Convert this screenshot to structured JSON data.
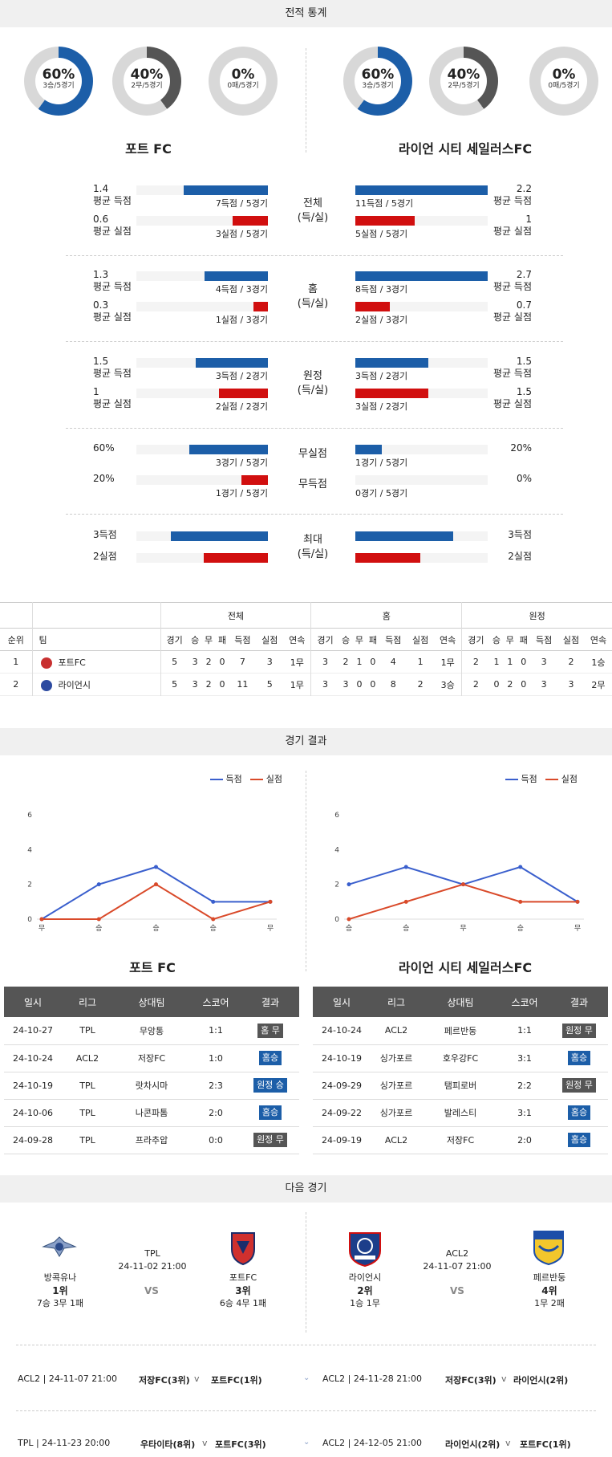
{
  "record": {
    "title": "전적 통계",
    "left": {
      "team": "포트 FC",
      "donuts": [
        {
          "pct": "60%",
          "sub": "3승/5경기",
          "value": 0.6,
          "color": "#1c5ea8"
        },
        {
          "pct": "40%",
          "sub": "2무/5경기",
          "value": 0.4,
          "color": "#555555"
        },
        {
          "pct": "0%",
          "sub": "0패/5경기",
          "value": 0.0,
          "color": "#d10f0f"
        }
      ]
    },
    "right": {
      "team": "라이언 시티 세일러스FC",
      "donuts": [
        {
          "pct": "60%",
          "sub": "3승/5경기",
          "value": 0.6,
          "color": "#1c5ea8"
        },
        {
          "pct": "40%",
          "sub": "2무/5경기",
          "value": 0.4,
          "color": "#555555"
        },
        {
          "pct": "0%",
          "sub": "0패/5경기",
          "value": 0.0,
          "color": "#d10f0f"
        }
      ]
    }
  },
  "stat_groups": [
    {
      "label": "전체\n(득/실)",
      "rows": [
        {
          "l_val": "1.4",
          "l_name": "평균 득점",
          "l_cap": "7득점 / 5경기",
          "l_frac": 0.64,
          "r_val": "2.2",
          "r_name": "평균 득점",
          "r_cap": "11득점 / 5경기",
          "r_frac": 1.0,
          "color": "blue"
        },
        {
          "l_val": "0.6",
          "l_name": "평균 실점",
          "l_cap": "3실점 / 5경기",
          "l_frac": 0.27,
          "r_val": "1",
          "r_name": "평균 실점",
          "r_cap": "5실점 / 5경기",
          "r_frac": 0.45,
          "color": "red"
        }
      ]
    },
    {
      "label": "홈\n(득/실)",
      "rows": [
        {
          "l_val": "1.3",
          "l_name": "평균 득점",
          "l_cap": "4득점 / 3경기",
          "l_frac": 0.48,
          "r_val": "2.7",
          "r_name": "평균 득점",
          "r_cap": "8득점 / 3경기",
          "r_frac": 1.0,
          "color": "blue"
        },
        {
          "l_val": "0.3",
          "l_name": "평균 실점",
          "l_cap": "1실점 / 3경기",
          "l_frac": 0.11,
          "r_val": "0.7",
          "r_name": "평균 실점",
          "r_cap": "2실점 / 3경기",
          "r_frac": 0.26,
          "color": "red"
        }
      ]
    },
    {
      "label": "원정\n(득/실)",
      "rows": [
        {
          "l_val": "1.5",
          "l_name": "평균 득점",
          "l_cap": "3득점 / 2경기",
          "l_frac": 0.55,
          "r_val": "1.5",
          "r_name": "평균 득점",
          "r_cap": "3득점 / 2경기",
          "r_frac": 0.55,
          "color": "blue"
        },
        {
          "l_val": "1",
          "l_name": "평균 실점",
          "l_cap": "2실점 / 2경기",
          "l_frac": 0.37,
          "r_val": "1.5",
          "r_name": "평균 실점",
          "r_cap": "3실점 / 2경기",
          "r_frac": 0.55,
          "color": "red"
        }
      ]
    }
  ],
  "clean": [
    {
      "label": "무실점",
      "l_val": "60%",
      "l_cap": "3경기 / 5경기",
      "l_frac": 0.6,
      "r_val": "20%",
      "r_cap": "1경기 / 5경기",
      "r_frac": 0.2,
      "color": "blue"
    },
    {
      "label": "무득점",
      "l_val": "20%",
      "l_cap": "1경기 / 5경기",
      "l_frac": 0.2,
      "r_val": "0%",
      "r_cap": "0경기 / 5경기",
      "r_frac": 0.0,
      "color": "red"
    }
  ],
  "max": {
    "label": "최대\n(득/실)",
    "rows": [
      {
        "l_val": "3득점",
        "l_frac": 0.74,
        "r_val": "3득점",
        "r_frac": 0.74,
        "color": "blue"
      },
      {
        "l_val": "2실점",
        "l_frac": 0.49,
        "r_val": "2실점",
        "r_frac": 0.49,
        "color": "red"
      }
    ]
  },
  "standings": {
    "groups": [
      "전체",
      "홈",
      "원정"
    ],
    "headers": [
      "순위",
      "팀",
      "경기",
      "승",
      "무",
      "패",
      "득점",
      "실점",
      "연속",
      "경기",
      "승",
      "무",
      "패",
      "득점",
      "실점",
      "연속",
      "경기",
      "승",
      "무",
      "패",
      "득점",
      "실점",
      "연속"
    ],
    "rows": [
      [
        "1",
        "포트FC",
        "5",
        "3",
        "2",
        "0",
        "7",
        "3",
        "1무",
        "3",
        "2",
        "1",
        "0",
        "4",
        "1",
        "1무",
        "2",
        "1",
        "1",
        "0",
        "3",
        "2",
        "1승"
      ],
      [
        "2",
        "라이언시",
        "5",
        "3",
        "2",
        "0",
        "11",
        "5",
        "1무",
        "3",
        "3",
        "0",
        "0",
        "8",
        "2",
        "3승",
        "2",
        "0",
        "2",
        "0",
        "3",
        "3",
        "2무"
      ]
    ]
  },
  "results": {
    "title": "경기 결과",
    "legend_scored": "득점",
    "legend_conceded": "실점",
    "left_team": "포트 FC",
    "right_team": "라이언 시티 세일러스FC",
    "headers": [
      "일시",
      "리그",
      "상대팀",
      "스코어",
      "결과"
    ],
    "left_rows": [
      [
        "24-10-27",
        "TPL",
        "무앙통",
        "1:1",
        "홈 무"
      ],
      [
        "24-10-24",
        "ACL2",
        "저장FC",
        "1:0",
        "홈승"
      ],
      [
        "24-10-19",
        "TPL",
        "랏차시마",
        "2:3",
        "원정 승"
      ],
      [
        "24-10-06",
        "TPL",
        "나콘파톰",
        "2:0",
        "홈승"
      ],
      [
        "24-09-28",
        "TPL",
        "프라추압",
        "0:0",
        "원정 무"
      ]
    ],
    "left_badge_colors": [
      "#555555",
      "#1c5ea8",
      "#1c5ea8",
      "#1c5ea8",
      "#555555"
    ],
    "right_rows": [
      [
        "24-10-24",
        "ACL2",
        "페르반둥",
        "1:1",
        "원정 무"
      ],
      [
        "24-10-19",
        "싱가포르",
        "호우강FC",
        "3:1",
        "홈승"
      ],
      [
        "24-09-29",
        "싱가포르",
        "탬피로버",
        "2:2",
        "원정 무"
      ],
      [
        "24-09-22",
        "싱가포르",
        "발레스티",
        "3:1",
        "홈승"
      ],
      [
        "24-09-19",
        "ACL2",
        "저장FC",
        "2:0",
        "홈승"
      ]
    ],
    "right_badge_colors": [
      "#555555",
      "#1c5ea8",
      "#555555",
      "#1c5ea8",
      "#1c5ea8"
    ]
  },
  "chart_data": [
    {
      "type": "line",
      "categories": [
        "무",
        "승",
        "승",
        "승",
        "무"
      ],
      "series": [
        {
          "name": "득점",
          "values": [
            0,
            2,
            3,
            1,
            1
          ],
          "color": "#3a5fcd"
        },
        {
          "name": "실점",
          "values": [
            0,
            0,
            2,
            0,
            1
          ],
          "color": "#d94a2a"
        }
      ],
      "yticks": [
        0,
        2,
        4,
        6
      ],
      "ylim": [
        0,
        6
      ]
    },
    {
      "type": "line",
      "categories": [
        "승",
        "승",
        "무",
        "승",
        "무"
      ],
      "series": [
        {
          "name": "득점",
          "values": [
            2,
            3,
            2,
            3,
            1
          ],
          "color": "#3a5fcd"
        },
        {
          "name": "실점",
          "values": [
            0,
            1,
            2,
            1,
            1
          ],
          "color": "#d94a2a"
        }
      ],
      "yticks": [
        0,
        2,
        4,
        6
      ],
      "ylim": [
        0,
        6
      ]
    }
  ],
  "next": {
    "title": "다음 경기",
    "left": {
      "league": "TPL",
      "datetime": "24-11-02 21:00",
      "vs": "VS",
      "home": {
        "name": "방콕유나",
        "rank": "1위",
        "record": "7승 3무 1패"
      },
      "away": {
        "name": "포트FC",
        "rank": "3위",
        "record": "6승 4무 1패"
      }
    },
    "right": {
      "league": "ACL2",
      "datetime": "24-11-07 21:00",
      "vs": "VS",
      "home": {
        "name": "라이언시",
        "rank": "2위",
        "record": "1승 1무"
      },
      "away": {
        "name": "페르반둥",
        "rank": "4위",
        "record": "1무 2패"
      }
    }
  },
  "schedule": {
    "left": [
      {
        "info": "ACL2 | 24-11-07 21:00",
        "home": "저장FC(3위)",
        "away": "포트FC(1위)"
      },
      {
        "info": "TPL | 24-11-23 20:00",
        "home": "우타이타(8위)",
        "away": "포트FC(3위)"
      }
    ],
    "right": [
      {
        "info": "ACL2 | 24-11-28 21:00",
        "home": "저장FC(3위)",
        "away": "라이언시(2위)"
      },
      {
        "info": "ACL2 | 24-12-05 21:00",
        "home": "라이언시(2위)",
        "away": "포트FC(1위)"
      }
    ]
  }
}
